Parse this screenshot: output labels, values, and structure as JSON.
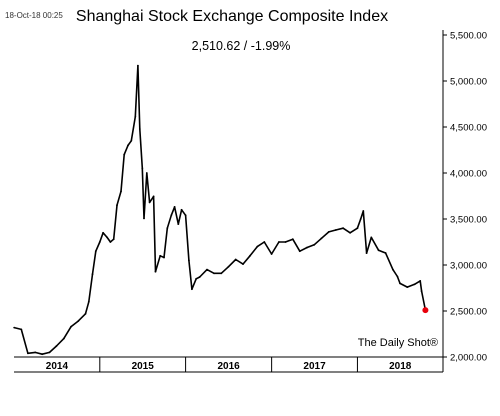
{
  "chart_data": {
    "type": "line",
    "title": "Shanghai Stock Exchange Composite Index",
    "subtitle": "2,510.62  /  -1.99%",
    "timestamp": "18-Oct-18 00:25",
    "source": "The Daily Shot®",
    "xlabel": "",
    "ylabel": "",
    "ylim": [
      2000,
      5500
    ],
    "y_ticks": [
      "5,500.00",
      "5,000.00",
      "4,500.00",
      "4,000.00",
      "3,500.00",
      "3,000.00",
      "2,500.00",
      "2,000.00"
    ],
    "x_categories": [
      "2014",
      "2015",
      "2016",
      "2017",
      "2018"
    ],
    "grid": false,
    "line_color": "#000000",
    "marker_color": "#e8000b",
    "series": [
      {
        "x": [
          "2014-01-02",
          "2014-02-01",
          "2014-03-01",
          "2014-04-01",
          "2014-05-01",
          "2014-06-01",
          "2014-07-01",
          "2014-08-01",
          "2014-09-01",
          "2014-10-01",
          "2014-11-01",
          "2014-11-15",
          "2014-12-01",
          "2014-12-15",
          "2015-01-01",
          "2015-01-15",
          "2015-02-01",
          "2015-02-15",
          "2015-03-01",
          "2015-03-15",
          "2015-04-01",
          "2015-04-15",
          "2015-05-01",
          "2015-05-15",
          "2015-06-01",
          "2015-06-12",
          "2015-06-20",
          "2015-07-01",
          "2015-07-08",
          "2015-07-20",
          "2015-08-01",
          "2015-08-18",
          "2015-08-26",
          "2015-09-15",
          "2015-10-01",
          "2015-10-15",
          "2015-11-01",
          "2015-11-15",
          "2015-12-01",
          "2015-12-15",
          "2016-01-01",
          "2016-01-15",
          "2016-01-28",
          "2016-02-15",
          "2016-03-01",
          "2016-04-01",
          "2016-05-01",
          "2016-06-01",
          "2016-07-01",
          "2016-08-01",
          "2016-09-01",
          "2016-10-01",
          "2016-11-01",
          "2016-12-01",
          "2017-01-01",
          "2017-02-01",
          "2017-03-01",
          "2017-04-01",
          "2017-05-01",
          "2017-06-01",
          "2017-07-01",
          "2017-08-01",
          "2017-09-01",
          "2017-10-01",
          "2017-11-01",
          "2017-12-01",
          "2018-01-01",
          "2018-01-15",
          "2018-01-26",
          "2018-02-09",
          "2018-03-01",
          "2018-04-01",
          "2018-05-01",
          "2018-06-01",
          "2018-06-20",
          "2018-07-01",
          "2018-08-01",
          "2018-09-01",
          "2018-09-25",
          "2018-10-01",
          "2018-10-17"
        ],
        "y": [
          2320,
          2300,
          2040,
          2050,
          2030,
          2050,
          2120,
          2200,
          2330,
          2390,
          2470,
          2600,
          2900,
          3150,
          3250,
          3350,
          3300,
          3250,
          3280,
          3650,
          3800,
          4200,
          4300,
          4350,
          4611,
          5166,
          4478,
          4053,
          3507,
          4000,
          3680,
          3746,
          2927,
          3100,
          3082,
          3400,
          3540,
          3632,
          3445,
          3600,
          3540,
          3050,
          2737,
          2850,
          2870,
          2950,
          2910,
          2910,
          2980,
          3060,
          3010,
          3100,
          3200,
          3250,
          3120,
          3250,
          3250,
          3280,
          3150,
          3190,
          3220,
          3290,
          3360,
          3380,
          3400,
          3350,
          3400,
          3500,
          3587,
          3129,
          3300,
          3160,
          3130,
          2950,
          2875,
          2800,
          2760,
          2790,
          2827,
          2716,
          2510
        ]
      }
    ]
  }
}
